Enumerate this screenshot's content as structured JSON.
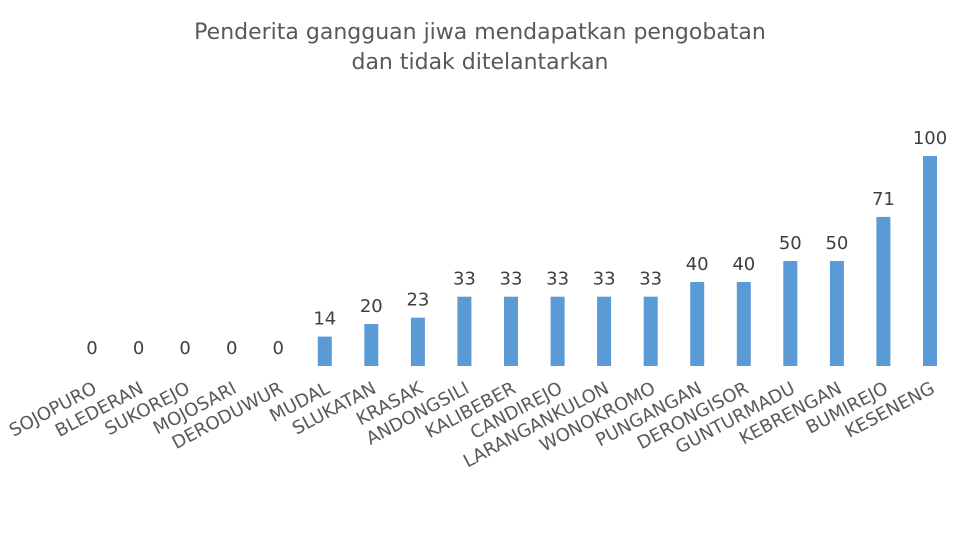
{
  "chart_data": {
    "type": "bar",
    "title": "Penderita gangguan jiwa mendapatkan pengobatan\ndan tidak ditelantarkan",
    "categories": [
      "SOJOPURO",
      "BLEDERAN",
      "SUKOREJO",
      "MOJOSARI",
      "DERODUWUR",
      "MUDAL",
      "SLUKATAN",
      "KRASAK",
      "ANDONGSILI",
      "KALIBEBER",
      "CANDIREJO",
      "LARANGANKULON",
      "WONOKROMO",
      "PUNGANGAN",
      "DERONGISOR",
      "GUNTURMADU",
      "KEBRENGAN",
      "BUMIREJO",
      "KESENENG"
    ],
    "values": [
      0,
      0,
      0,
      0,
      0,
      14,
      20,
      23,
      33,
      33,
      33,
      33,
      33,
      40,
      40,
      50,
      50,
      71,
      100
    ],
    "data_labels": [
      "0",
      "0",
      "0",
      "0",
      "0",
      "14",
      "20",
      "23",
      "33",
      "33",
      "33",
      "33",
      "33",
      "40",
      "40",
      "50",
      "50",
      "71",
      "100"
    ],
    "xlabel": "",
    "ylabel": "",
    "ylim": [
      0,
      100
    ],
    "grid": false,
    "legend": "none",
    "bar_color": "#5b9bd5"
  }
}
